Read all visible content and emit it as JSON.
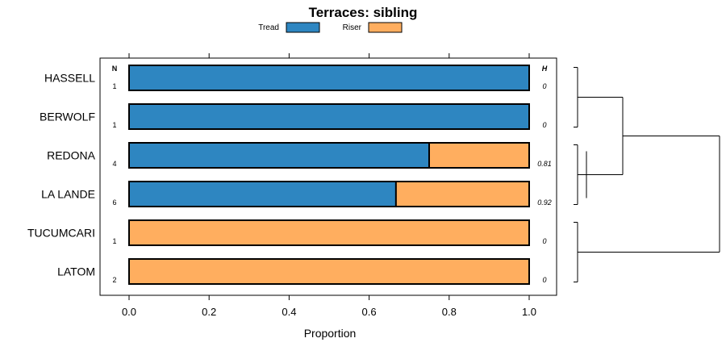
{
  "chart_data": {
    "type": "bar",
    "orientation": "horizontal",
    "stacked": true,
    "title": "Terraces: sibling",
    "xlabel": "Proportion",
    "ylabel": "",
    "xlim": [
      0,
      1
    ],
    "x_ticks": [
      "0.0",
      "0.2",
      "0.4",
      "0.6",
      "0.8",
      "1.0"
    ],
    "legend_position": "top",
    "categories": [
      "HASSELL",
      "BERWOLF",
      "REDONA",
      "LA LANDE",
      "TUCUMCARI",
      "LATOM"
    ],
    "series": [
      {
        "name": "Tread",
        "color": "#2E86C1",
        "values": [
          1.0,
          1.0,
          0.75,
          0.667,
          0.0,
          0.0
        ]
      },
      {
        "name": "Riser",
        "color": "#FFAE5F",
        "values": [
          0.0,
          0.0,
          0.25,
          0.333,
          1.0,
          1.0
        ]
      }
    ],
    "n_header": "N",
    "n_values": [
      "1",
      "1",
      "4",
      "6",
      "1",
      "2"
    ],
    "h_header": "H",
    "h_values": [
      "0",
      "0",
      "0.81",
      "0.92",
      "0",
      "0"
    ],
    "dendrogram": {
      "merges": [
        {
          "left": "HASSELL",
          "right": "BERWOLF"
        },
        {
          "left": "REDONA",
          "right": "LA LANDE"
        },
        {
          "left": "TUCUMCARI",
          "right": "LATOM"
        }
      ]
    }
  }
}
